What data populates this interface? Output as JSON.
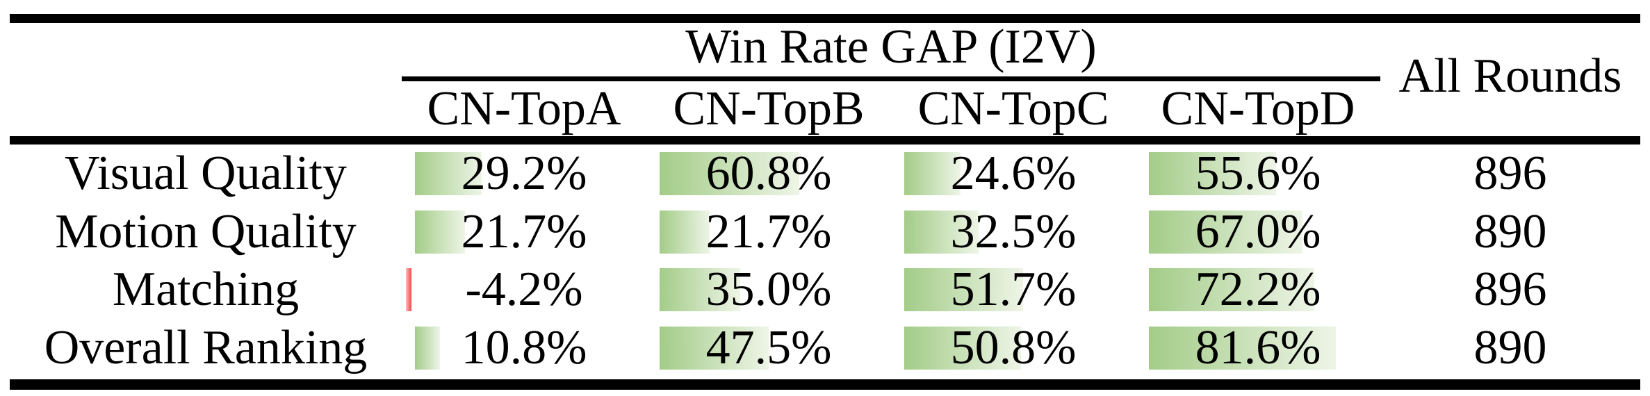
{
  "table": {
    "group_header": "Win Rate GAP (I2V)",
    "last_column_header": "All Rounds",
    "columns": [
      "CN-TopA",
      "CN-TopB",
      "CN-TopC",
      "CN-TopD"
    ],
    "rows": [
      {
        "label": "Visual Quality",
        "values": [
          "29.2%",
          "60.8%",
          "24.6%",
          "55.6%"
        ],
        "all_rounds": "896"
      },
      {
        "label": "Motion Quality",
        "values": [
          "21.7%",
          "21.7%",
          "32.5%",
          "67.0%"
        ],
        "all_rounds": "890"
      },
      {
        "label": "Matching",
        "values": [
          "-4.2%",
          "35.0%",
          "51.7%",
          "72.2%"
        ],
        "all_rounds": "896"
      },
      {
        "label": "Overall Ranking",
        "values": [
          "10.8%",
          "47.5%",
          "50.8%",
          "81.6%"
        ],
        "all_rounds": "890"
      }
    ],
    "colors": {
      "bar_positive_start": "#a3cc88",
      "bar_positive_end": "#eef5e7",
      "bar_negative_start": "#ffbdbd",
      "bar_negative_end": "#f34949",
      "rule": "#000000",
      "text": "#000000",
      "background": "#ffffff"
    }
  },
  "chart_data": {
    "type": "table",
    "title": "Win Rate GAP (I2V)",
    "columns": [
      "CN-TopA",
      "CN-TopB",
      "CN-TopC",
      "CN-TopD",
      "All Rounds"
    ],
    "row_labels": [
      "Visual Quality",
      "Motion Quality",
      "Matching",
      "Overall Ranking"
    ],
    "series": [
      {
        "name": "CN-TopA",
        "values": [
          29.2,
          21.7,
          -4.2,
          10.8
        ]
      },
      {
        "name": "CN-TopB",
        "values": [
          60.8,
          21.7,
          35.0,
          47.5
        ]
      },
      {
        "name": "CN-TopC",
        "values": [
          24.6,
          32.5,
          51.7,
          50.8
        ]
      },
      {
        "name": "CN-TopD",
        "values": [
          55.6,
          67.0,
          72.2,
          81.6
        ]
      },
      {
        "name": "All Rounds",
        "values": [
          896,
          890,
          896,
          890
        ]
      }
    ],
    "units": "percent",
    "cell_bars": {
      "style": "gradient-data-bar",
      "positive_color": "#a3cc88",
      "negative_color": "#f34949",
      "axis_max": 100
    }
  }
}
